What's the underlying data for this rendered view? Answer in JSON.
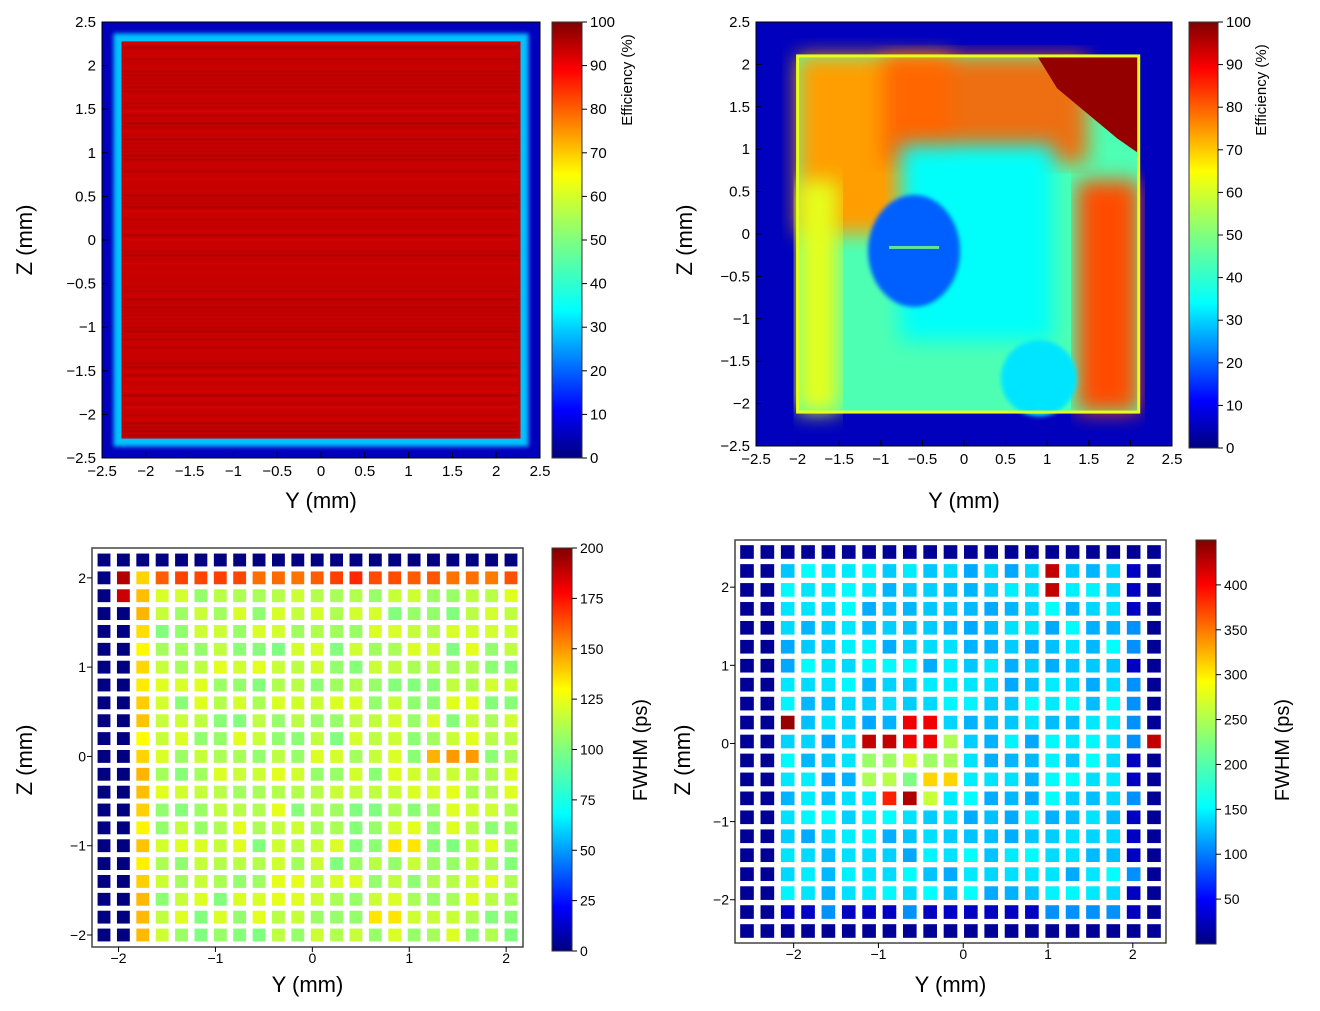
{
  "chart_data": [
    {
      "type": "heatmap",
      "xlabel": "Y (mm)",
      "ylabel": "Z (mm)",
      "xlim": [
        -2.5,
        2.5
      ],
      "ylim": [
        -2.5,
        2.5
      ],
      "x_ticks": [
        "−2.5",
        "−2",
        "−1.5",
        "−1",
        "−0.5",
        "0",
        "0.5",
        "1",
        "1.5",
        "2",
        "2.5"
      ],
      "y_ticks": [
        "−2.5",
        "−2",
        "−1.5",
        "−1",
        "−0.5",
        "0",
        "0.5",
        "1",
        "1.5",
        "2",
        "2.5"
      ],
      "colorbar": {
        "label": "Efficiency (%)",
        "range": [
          0,
          100
        ],
        "ticks": [
          "0",
          "10",
          "20",
          "30",
          "40",
          "50",
          "60",
          "70",
          "80",
          "90",
          "100"
        ]
      },
      "pattern": "uniform",
      "active_region": {
        "y": [
          -2.3,
          2.3
        ],
        "z": [
          -2.3,
          2.3
        ]
      },
      "values": {
        "inside": 90,
        "edge": 45,
        "outside": 5
      }
    },
    {
      "type": "heatmap",
      "xlabel": "Y (mm)",
      "ylabel": "Z (mm)",
      "xlim": [
        -2.5,
        2.5
      ],
      "ylim": [
        -2.5,
        2.5
      ],
      "x_ticks": [
        "−2.5",
        "−2",
        "−1.5",
        "−1",
        "−0.5",
        "0",
        "0.5",
        "1",
        "1.5",
        "2",
        "2.5"
      ],
      "y_ticks": [
        "−2.5",
        "−2",
        "−1.5",
        "−1",
        "−0.5",
        "0",
        "0.5",
        "1",
        "1.5",
        "2",
        "2.5"
      ],
      "colorbar": {
        "label": "Efficiency (%)",
        "range": [
          0,
          100
        ],
        "ticks": [
          "0",
          "10",
          "20",
          "30",
          "40",
          "50",
          "60",
          "70",
          "80",
          "90",
          "100"
        ]
      },
      "pattern": "nonuniform",
      "active_region": {
        "y": [
          -2.0,
          2.1
        ],
        "z": [
          -2.1,
          2.1
        ]
      },
      "features": [
        {
          "kind": "low-efficiency-spot",
          "y": -0.6,
          "z": -0.2,
          "value": 22
        },
        {
          "kind": "moderate-spot",
          "y": 0.9,
          "z": -1.7,
          "value": 35
        },
        {
          "kind": "high-corner",
          "y": 1.6,
          "z": 1.6,
          "value": 98
        }
      ]
    },
    {
      "type": "heatmap",
      "xlabel": "Y (mm)",
      "ylabel": "Z (mm)",
      "x_ticks": [
        "−2",
        "−1",
        "0",
        "1",
        "2"
      ],
      "y_ticks": [
        "−2",
        "−1",
        "0",
        "1",
        "2"
      ],
      "colorbar": {
        "label": "FWHM (ps)",
        "range": [
          0,
          200
        ],
        "ticks": [
          "0",
          "25",
          "50",
          "75",
          "100",
          "125",
          "150",
          "175",
          "200"
        ]
      },
      "grid": {
        "cols": 22,
        "rows": 22,
        "y_start": -2.15,
        "y_end": 2.05,
        "z_start": -2.0,
        "z_end": 2.2
      },
      "values_summary": {
        "dead_columns_left": 2,
        "dead_top_row": true,
        "edge_column_value": 125,
        "top_edge_row_value": 150,
        "interior_value": 100
      },
      "hot_cells": [
        {
          "y": -1.95,
          "z": 2.0,
          "value": 190
        },
        {
          "y": -1.95,
          "z": 1.8,
          "value": 185
        },
        {
          "y": 0.75,
          "z": 2.0,
          "value": 160
        },
        {
          "y": 1.35,
          "z": 0.0,
          "value": 140
        },
        {
          "y": 1.55,
          "z": 0.0,
          "value": 145
        },
        {
          "y": 0.95,
          "z": -1.0,
          "value": 130
        },
        {
          "y": 0.75,
          "z": -1.8,
          "value": 130
        }
      ]
    },
    {
      "type": "heatmap",
      "xlabel": "Y (mm)",
      "ylabel": "Z (mm)",
      "x_ticks": [
        "−2",
        "−1",
        "0",
        "1",
        "2"
      ],
      "y_ticks": [
        "−2",
        "−1",
        "0",
        "1",
        "2"
      ],
      "colorbar": {
        "label": "FWHM (ps)",
        "range": [
          0,
          450
        ],
        "ticks": [
          "50",
          "100",
          "150",
          "200",
          "250",
          "300",
          "350",
          "400"
        ]
      },
      "grid": {
        "cols": 21,
        "rows": 21,
        "y_start": -2.55,
        "y_end": 2.25,
        "z_start": -2.4,
        "z_end": 2.45
      },
      "values_summary": {
        "border_value": 10,
        "interior_value": 150,
        "spot_region_value": 220
      },
      "hot_cells": [
        {
          "y": -0.95,
          "z": 0.0,
          "value": 420
        },
        {
          "y": -0.5,
          "z": 0.1,
          "value": 400
        },
        {
          "y": -0.7,
          "z": -0.7,
          "value": 430
        },
        {
          "y": -0.9,
          "z": -0.7,
          "value": 380
        },
        {
          "y": -0.3,
          "z": -0.5,
          "value": 300
        },
        {
          "y": 1.1,
          "z": 2.1,
          "value": 420
        },
        {
          "y": -2.1,
          "z": 0.3,
          "value": 440
        },
        {
          "y": 2.3,
          "z": 0.0,
          "value": 420
        }
      ]
    }
  ]
}
